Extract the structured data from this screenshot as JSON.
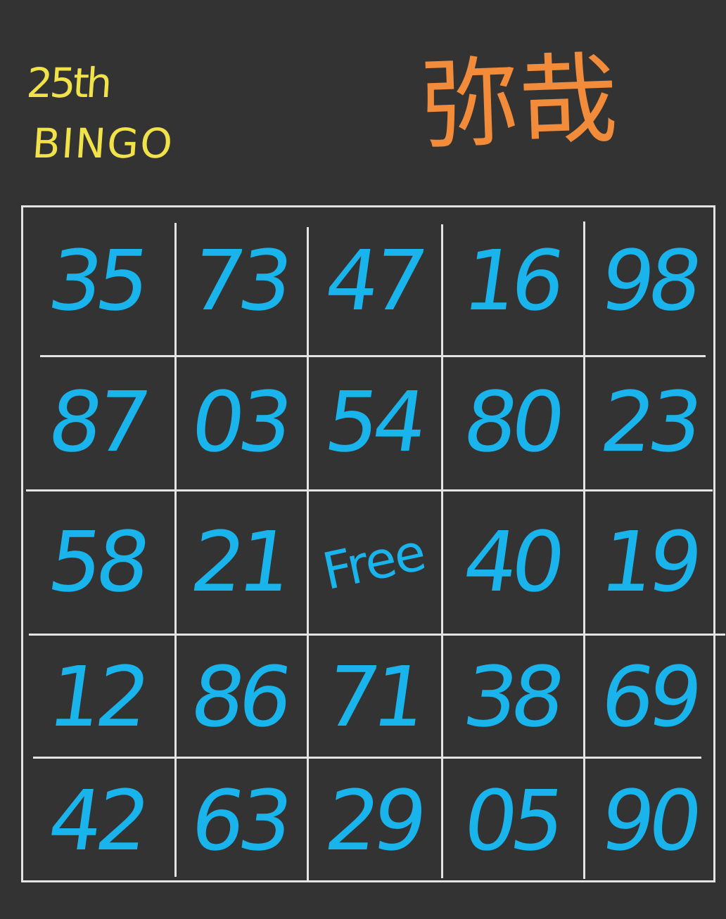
{
  "header": {
    "title_line1": "25th",
    "title_line2": "BINGO",
    "name": "弥哉"
  },
  "colors": {
    "background": "#333333",
    "grid_lines": "#e4e4e4",
    "numbers": "#1ab4ec",
    "title": "#f2e24a",
    "name": "#f28b3a"
  },
  "board": {
    "rows": [
      [
        "35",
        "73",
        "47",
        "16",
        "98"
      ],
      [
        "87",
        "03",
        "54",
        "80",
        "23"
      ],
      [
        "58",
        "21",
        "Free",
        "40",
        "19"
      ],
      [
        "12",
        "86",
        "71",
        "38",
        "69"
      ],
      [
        "42",
        "63",
        "29",
        "05",
        "90"
      ]
    ]
  }
}
